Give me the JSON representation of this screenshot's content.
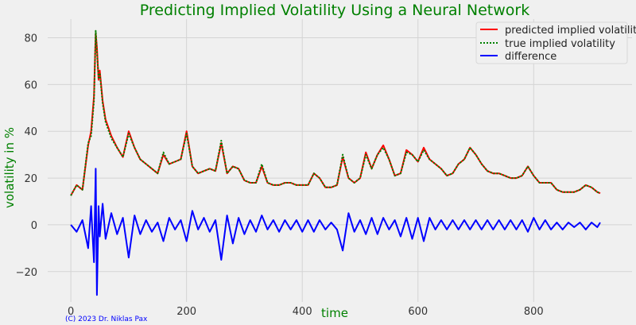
{
  "chart_data": {
    "type": "line",
    "title": "Predicting Implied Volatility Using a Neural Network",
    "xlabel": "time",
    "ylabel": "volatility in %",
    "xlim": [
      -40,
      970
    ],
    "ylim": [
      -33,
      88
    ],
    "xticks": [
      0,
      200,
      400,
      600,
      800
    ],
    "yticks": [
      -20,
      0,
      20,
      40,
      60,
      80
    ],
    "xtick_labels": [
      "0",
      "200",
      "400",
      "600",
      "800"
    ],
    "ytick_labels": [
      "−20",
      "0",
      "20",
      "40",
      "60",
      "80"
    ],
    "grid": true,
    "legend_position": "top-right",
    "x": [
      0,
      10,
      20,
      30,
      35,
      40,
      43,
      45,
      48,
      50,
      55,
      60,
      70,
      80,
      90,
      100,
      110,
      120,
      130,
      140,
      150,
      160,
      170,
      180,
      190,
      200,
      210,
      220,
      230,
      240,
      250,
      260,
      270,
      280,
      290,
      300,
      310,
      320,
      330,
      340,
      350,
      360,
      370,
      380,
      390,
      400,
      410,
      420,
      430,
      440,
      450,
      460,
      470,
      480,
      490,
      500,
      510,
      520,
      530,
      540,
      550,
      560,
      570,
      580,
      590,
      600,
      610,
      620,
      630,
      640,
      650,
      660,
      670,
      680,
      690,
      700,
      710,
      720,
      730,
      740,
      750,
      760,
      770,
      780,
      790,
      800,
      810,
      820,
      830,
      840,
      850,
      860,
      870,
      880,
      890,
      900,
      910,
      915
    ],
    "series": [
      {
        "name": "predicted implied volatility",
        "color": "#ff0000",
        "style": "solid",
        "values": [
          12.5,
          17,
          15,
          34,
          40,
          55,
          82,
          76,
          62,
          66,
          53,
          45,
          38,
          33,
          29,
          40,
          33,
          28,
          26,
          24,
          22,
          30,
          26,
          27,
          28,
          40,
          25,
          22,
          23,
          24,
          23,
          35,
          22,
          25,
          24,
          19,
          18,
          18,
          25,
          18,
          17,
          17,
          18,
          18,
          17,
          17,
          17,
          22,
          20,
          16,
          16,
          17,
          29,
          20,
          18,
          20,
          31,
          24,
          30,
          34,
          28,
          21,
          22,
          32,
          30,
          27,
          33,
          28,
          26,
          24,
          21,
          22,
          26,
          28,
          33,
          30,
          26,
          23,
          22,
          22,
          21,
          20,
          20,
          21,
          25,
          21,
          18,
          18,
          18,
          15,
          14,
          14,
          14,
          15,
          17,
          16,
          14,
          13.5
        ]
      },
      {
        "name": "true implied volatility",
        "color": "#008000",
        "style": "dotted",
        "values": [
          12.5,
          17,
          15,
          35,
          38,
          53,
          83,
          74,
          63,
          65,
          52,
          44,
          37,
          33,
          29,
          39,
          33,
          28,
          26,
          24,
          22,
          31,
          26,
          27,
          28,
          39,
          25,
          22,
          23,
          24,
          23,
          36,
          22,
          25,
          24,
          19,
          18,
          18,
          26,
          18,
          17,
          17,
          18,
          18,
          17,
          17,
          17,
          22,
          20,
          16,
          16,
          17,
          30,
          20,
          18,
          20,
          30,
          24,
          30,
          33,
          28,
          21,
          22,
          31,
          30,
          27,
          32,
          28,
          26,
          24,
          21,
          22,
          26,
          28,
          33,
          30,
          26,
          23,
          22,
          22,
          21,
          20,
          20,
          21,
          25,
          21,
          18,
          18,
          18,
          15,
          14,
          14,
          14,
          15,
          17,
          16,
          14,
          13.5
        ]
      },
      {
        "name": "difference",
        "color": "#0000ff",
        "style": "solid",
        "values": [
          0,
          -3,
          2,
          -10,
          8,
          -16,
          24,
          -30,
          8,
          -5,
          9,
          -6,
          5,
          -4,
          3,
          -14,
          4,
          -4,
          2,
          -3,
          1,
          -7,
          3,
          -2,
          2,
          -7,
          6,
          -2,
          3,
          -3,
          2,
          -15,
          4,
          -8,
          3,
          -4,
          2,
          -3,
          4,
          -2,
          2,
          -3,
          2,
          -2,
          2,
          -3,
          2,
          -3,
          2,
          -2,
          1,
          -2,
          -11,
          5,
          -3,
          2,
          -4,
          3,
          -4,
          3,
          -2,
          2,
          -5,
          3,
          -6,
          3,
          -7,
          3,
          -2,
          2,
          -2,
          2,
          -2,
          2,
          -2,
          2,
          -2,
          2,
          -2,
          2,
          -2,
          2,
          -2,
          2,
          -3,
          3,
          -2,
          2,
          -2,
          1,
          -2,
          1,
          -1,
          1,
          -2,
          1,
          -1,
          1
        ]
      }
    ]
  },
  "footer": {
    "copyright": "(C) 2023 Dr. Niklas Pax"
  }
}
